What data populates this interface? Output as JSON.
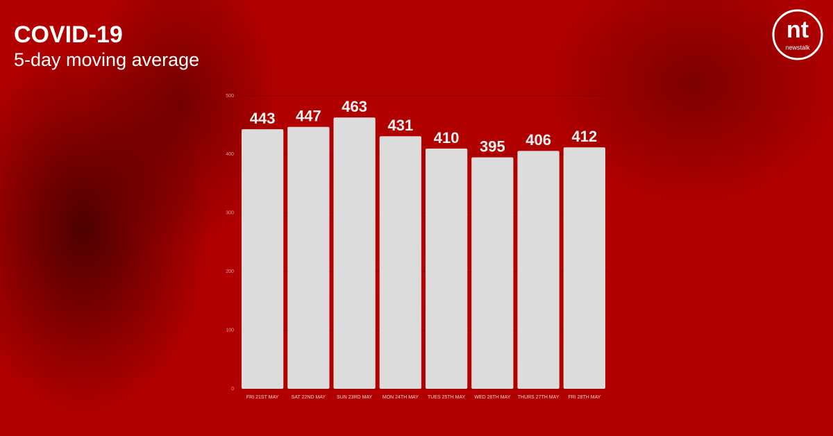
{
  "chart_data": {
    "type": "bar",
    "title": "COVID-19",
    "subtitle": "5-day moving average",
    "categories": [
      "FRI 21ST MAY",
      "SAT 22ND MAY",
      "SUN 23RD MAY",
      "MON 24TH MAY",
      "TUES 25TH MAY",
      "WED 26TH MAY",
      "THURS 27TH MAY",
      "FRI 28TH MAY"
    ],
    "values": [
      443,
      447,
      463,
      431,
      410,
      395,
      406,
      412
    ],
    "color": "#dcdcdc",
    "ylim": [
      0,
      500
    ],
    "yticks": [
      0,
      100,
      200,
      300,
      400,
      500
    ],
    "grid": true
  },
  "logo": {
    "mark": "nt",
    "name": "newstalk"
  }
}
